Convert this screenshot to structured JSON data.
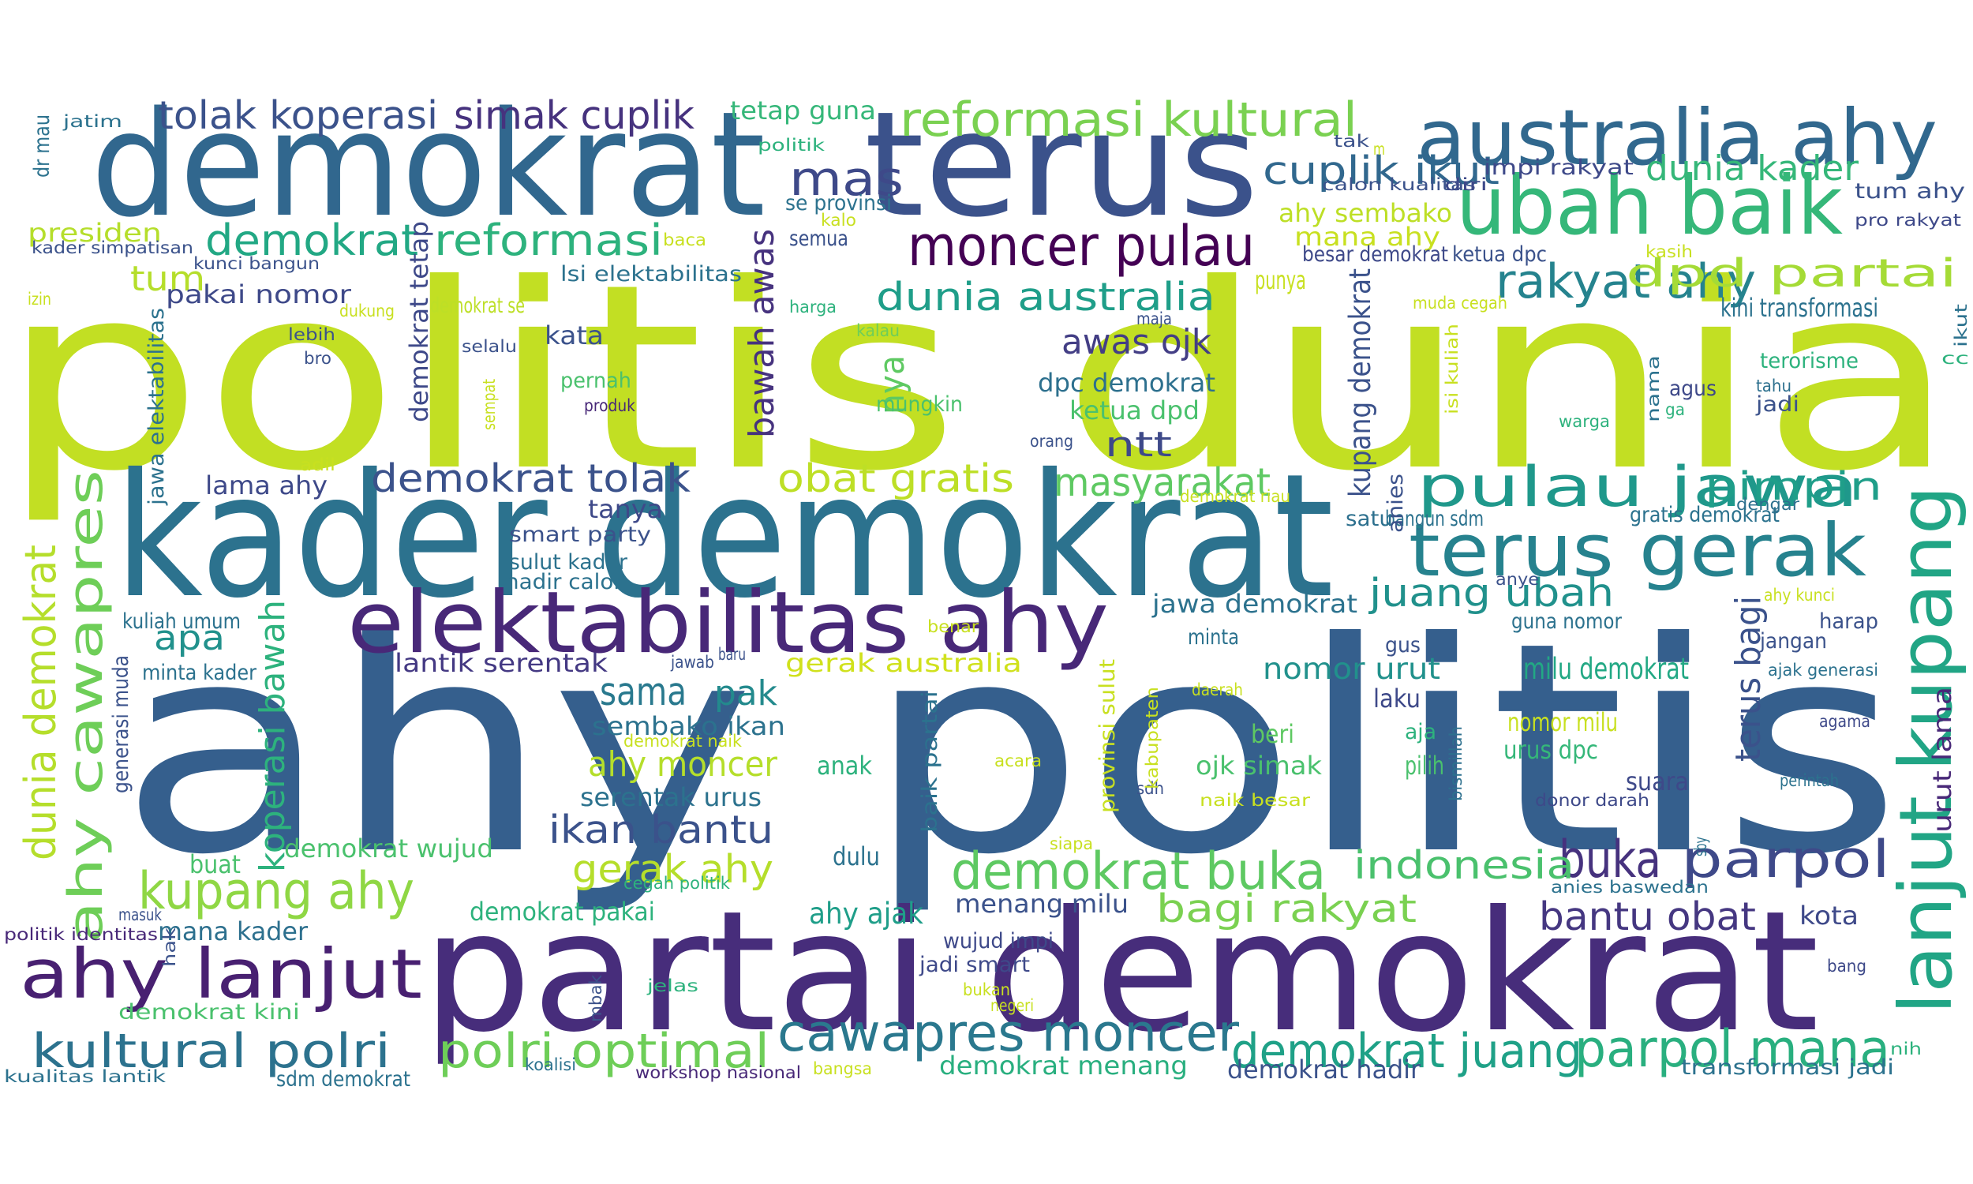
{
  "words": [
    {
      "text": "politis dunia",
      "color": "#c2df23"
    },
    {
      "text": "ahy politis",
      "color": "#355f8d"
    },
    {
      "text": "partai demokrat",
      "color": "#472d7b"
    },
    {
      "text": "kader demokrat",
      "color": "#2c728e"
    },
    {
      "text": "demokrat",
      "color": "#31678e"
    },
    {
      "text": "terus",
      "color": "#3b528b"
    },
    {
      "text": "australia ahy",
      "color": "#31688e"
    },
    {
      "text": "ubah baik",
      "color": "#35b779"
    },
    {
      "text": "elektabilitas ahy",
      "color": "#482878"
    },
    {
      "text": "terus gerak",
      "color": "#26828e"
    },
    {
      "text": "lanjut kupang",
      "color": "#21a585"
    },
    {
      "text": "ahy cawapres",
      "color": "#6ece58"
    },
    {
      "text": "ahy lanjut",
      "color": "#482071"
    },
    {
      "text": "reformasi kultural",
      "color": "#7ad151"
    },
    {
      "text": "moncer pulau",
      "color": "#440154"
    },
    {
      "text": "pulau jawa",
      "color": "#1f988b"
    },
    {
      "text": "demokrat buka",
      "color": "#5ec962"
    },
    {
      "text": "cawapres moncer",
      "color": "#2a788e"
    },
    {
      "text": "kultural polri",
      "color": "#2c728e"
    },
    {
      "text": "polri optimal",
      "color": "#6ece58"
    },
    {
      "text": "mas",
      "color": "#3e4989"
    },
    {
      "text": "demokrat",
      "color": "#22a884"
    },
    {
      "text": "reformasi",
      "color": "#2db27d"
    },
    {
      "text": "tolak koperasi",
      "color": "#3b528b"
    },
    {
      "text": "simak cuplik",
      "color": "#46327e"
    },
    {
      "text": "rakyat ahy",
      "color": "#25838e"
    },
    {
      "text": "dpd partai",
      "color": "#a5db36"
    },
    {
      "text": "dunia australia",
      "color": "#1f9e89"
    },
    {
      "text": "parpol mana",
      "color": "#29af7f"
    },
    {
      "text": "buka",
      "color": "#46327e"
    },
    {
      "text": "parpol",
      "color": "#3e4989"
    },
    {
      "text": "demokrat juang",
      "color": "#1fa187"
    },
    {
      "text": "dunia demokrat",
      "color": "#b5de2b"
    },
    {
      "text": "kupang ahy",
      "color": "#8fd744"
    },
    {
      "text": "demokrat tolak",
      "color": "#3b528b"
    },
    {
      "text": "indonesia",
      "color": "#4ac16d"
    },
    {
      "text": "juang ubah",
      "color": "#21918c"
    },
    {
      "text": "bagi rakyat",
      "color": "#7ad151"
    },
    {
      "text": "obat gratis",
      "color": "#bddf26"
    },
    {
      "text": "masyarakat",
      "color": "#5ec962"
    },
    {
      "text": "pimpin",
      "color": "#1f9e89"
    },
    {
      "text": "cuplik ikut",
      "color": "#31688e"
    },
    {
      "text": "dunia kader",
      "color": "#35b779"
    },
    {
      "text": "bantu obat",
      "color": "#453781"
    },
    {
      "text": "ikan bantu",
      "color": "#3b528b"
    },
    {
      "text": "gerak ahy",
      "color": "#b5de2b"
    },
    {
      "text": "ahy moncer",
      "color": "#b5de2b"
    },
    {
      "text": "ntt",
      "color": "#3e4989"
    },
    {
      "text": "awas ojk",
      "color": "#433e85"
    },
    {
      "text": "koperasi bawah",
      "color": "#2db27d"
    },
    {
      "text": "bawah awas",
      "color": "#46327e"
    },
    {
      "text": "sama",
      "color": "#29798e"
    },
    {
      "text": "pak",
      "color": "#238a8d"
    },
    {
      "text": "apa",
      "color": "#21918c"
    },
    {
      "text": "tum",
      "color": "#b5de2b"
    },
    {
      "text": "terus bagi",
      "color": "#3b528b"
    },
    {
      "text": "urut lama",
      "color": "#482878"
    },
    {
      "text": "nomor urut",
      "color": "#21918c"
    },
    {
      "text": "milu demokrat",
      "color": "#22a884"
    },
    {
      "text": "pakai nomor",
      "color": "#3e4989"
    },
    {
      "text": "dpc demokrat",
      "color": "#2d708e"
    },
    {
      "text": "ketua dpd",
      "color": "#4ac16d"
    },
    {
      "text": "lama ahy",
      "color": "#3e4989"
    },
    {
      "text": "demokrat pakai",
      "color": "#2db27d"
    },
    {
      "text": "demokrat menang",
      "color": "#29af7f"
    },
    {
      "text": "demokrat hadir",
      "color": "#3b528b"
    },
    {
      "text": "demokrat wujud",
      "color": "#4ac16d"
    },
    {
      "text": "ahy ajak",
      "color": "#1f9e89"
    },
    {
      "text": "menang milu",
      "color": "#3b528b"
    },
    {
      "text": "sembako ikan",
      "color": "#2c728e"
    },
    {
      "text": "serentak urus",
      "color": "#2c728e"
    },
    {
      "text": "lantik serentak",
      "color": "#443983"
    },
    {
      "text": "gerak australia",
      "color": "#d0e11c"
    },
    {
      "text": "jawa demokrat",
      "color": "#2c728e"
    },
    {
      "text": "mana kader",
      "color": "#2d708e"
    },
    {
      "text": "tetap guna",
      "color": "#35b779"
    },
    {
      "text": "presiden",
      "color": "#b5de2b"
    },
    {
      "text": "ahy sembako",
      "color": "#bddf26"
    },
    {
      "text": "mana ahy",
      "color": "#c8e020"
    },
    {
      "text": "kini transformasi",
      "color": "#2c728e"
    },
    {
      "text": "tum ahy",
      "color": "#3b528b"
    },
    {
      "text": "impi rakyat",
      "color": "#3e4989"
    },
    {
      "text": "gratis demokrat",
      "color": "#2c728e"
    },
    {
      "text": "guna nomor",
      "color": "#2c728e"
    },
    {
      "text": "nomor milu",
      "color": "#c8e020"
    },
    {
      "text": "urus dpc",
      "color": "#35b779"
    },
    {
      "text": "suara",
      "color": "#3e4989"
    },
    {
      "text": "kota",
      "color": "#3e4989"
    },
    {
      "text": "jangan",
      "color": "#3b528b"
    },
    {
      "text": "tanya",
      "color": "#3e4989"
    },
    {
      "text": "satu",
      "color": "#2d708e"
    },
    {
      "text": "bangun sdm",
      "color": "#2c728e"
    },
    {
      "text": "wujud impi",
      "color": "#3e4989"
    },
    {
      "text": "jadi smart",
      "color": "#3e4989"
    },
    {
      "text": "smart party",
      "color": "#3b528b"
    },
    {
      "text": "sulut kader",
      "color": "#2c728e"
    },
    {
      "text": "hadir calon",
      "color": "#2c728e"
    },
    {
      "text": "kata",
      "color": "#3b528b"
    },
    {
      "text": "pernah",
      "color": "#4ac16d"
    },
    {
      "text": "produk",
      "color": "#482878"
    },
    {
      "text": "selalu",
      "color": "#3b528b"
    },
    {
      "text": "lebih",
      "color": "#3b528b"
    },
    {
      "text": "bro",
      "color": "#3b528b"
    },
    {
      "text": "harga",
      "color": "#2db27d"
    },
    {
      "text": "kalau",
      "color": "#6ece58"
    },
    {
      "text": "maja",
      "color": "#3b528b"
    },
    {
      "text": "nya",
      "color": "#5ec962"
    },
    {
      "text": "mungkin",
      "color": "#4ac16d"
    },
    {
      "text": "orang",
      "color": "#3b528b"
    },
    {
      "text": "punya",
      "color": "#c8e020"
    },
    {
      "text": "demokrat se",
      "color": "#bddf26"
    },
    {
      "text": "dukung",
      "color": "#c8e020"
    },
    {
      "text": "lsi elektabilitas",
      "color": "#2c728e"
    },
    {
      "text": "baca",
      "color": "#c8e020"
    },
    {
      "text": "semua",
      "color": "#3b528b"
    },
    {
      "text": "kalo",
      "color": "#c8e020"
    },
    {
      "text": "se provinsi",
      "color": "#2c728e"
    },
    {
      "text": "politik",
      "color": "#2db27d"
    },
    {
      "text": "calon kualitas",
      "color": "#3b528b"
    },
    {
      "text": "diri",
      "color": "#3e4989"
    },
    {
      "text": "besar demokrat",
      "color": "#3e4989"
    },
    {
      "text": "ketua dpc",
      "color": "#3b528b"
    },
    {
      "text": "kasih",
      "color": "#c8e020"
    },
    {
      "text": "muda cegah",
      "color": "#c8e020"
    },
    {
      "text": "tak",
      "color": "#3b528b"
    },
    {
      "text": "m",
      "color": "#c8e020"
    },
    {
      "text": "pro rakyat",
      "color": "#3e4989"
    },
    {
      "text": "terorisme",
      "color": "#2db27d"
    },
    {
      "text": "cc",
      "color": "#2db27d"
    },
    {
      "text": "tahu",
      "color": "#2d708e"
    },
    {
      "text": "jadi",
      "color": "#3b528b"
    },
    {
      "text": "agus",
      "color": "#3e4989"
    },
    {
      "text": "ga",
      "color": "#2db27d"
    },
    {
      "text": "warga",
      "color": "#2db27d"
    },
    {
      "text": "dengar",
      "color": "#2d708e"
    },
    {
      "text": "anye",
      "color": "#3b528b"
    },
    {
      "text": "ahy kunci",
      "color": "#c8e020"
    },
    {
      "text": "harap",
      "color": "#3b528b"
    },
    {
      "text": "ajak generasi",
      "color": "#2c728e"
    },
    {
      "text": "agama",
      "color": "#3e4989"
    },
    {
      "text": "perintah",
      "color": "#2c728e"
    },
    {
      "text": "bang",
      "color": "#3e4989"
    },
    {
      "text": "nih",
      "color": "#2db27d"
    },
    {
      "text": "transformasi jadi",
      "color": "#2c728e"
    },
    {
      "text": "anies baswedan",
      "color": "#2c728e"
    },
    {
      "text": "donor darah",
      "color": "#3e4989"
    },
    {
      "text": "naik besar",
      "color": "#c8e020"
    },
    {
      "text": "ojk simak",
      "color": "#4ac16d"
    },
    {
      "text": "sdh",
      "color": "#3b528b"
    },
    {
      "text": "pilih",
      "color": "#4ac16d"
    },
    {
      "text": "aja",
      "color": "#2db27d"
    },
    {
      "text": "beri",
      "color": "#5ec962"
    },
    {
      "text": "laku",
      "color": "#3e4989"
    },
    {
      "text": "gus",
      "color": "#3b528b"
    },
    {
      "text": "minta",
      "color": "#2c728e"
    },
    {
      "text": "daerah",
      "color": "#c8e020"
    },
    {
      "text": "acara",
      "color": "#c8e020"
    },
    {
      "text": "siapa",
      "color": "#c8e020"
    },
    {
      "text": "bukan",
      "color": "#c8e020"
    },
    {
      "text": "negeri",
      "color": "#c8e020"
    },
    {
      "text": "benar",
      "color": "#c8e020"
    },
    {
      "text": "dulu",
      "color": "#2c728e"
    },
    {
      "text": "anak",
      "color": "#2db27d"
    },
    {
      "text": "buat",
      "color": "#4ac16d"
    },
    {
      "text": "demokrat naik",
      "color": "#c8e020"
    },
    {
      "text": "jawab",
      "color": "#3b528b"
    },
    {
      "text": "baru",
      "color": "#3b528b"
    },
    {
      "text": "cegah politik",
      "color": "#2db27d"
    },
    {
      "text": "jelas",
      "color": "#2db27d"
    },
    {
      "text": "koalisi",
      "color": "#2c728e"
    },
    {
      "text": "workshop nasional",
      "color": "#482878"
    },
    {
      "text": "bangsa",
      "color": "#c8e020"
    },
    {
      "text": "kualitas lantik",
      "color": "#2c728e"
    },
    {
      "text": "sdm demokrat",
      "color": "#2c728e"
    },
    {
      "text": "demokrat kini",
      "color": "#4ac16d"
    },
    {
      "text": "politik identitas",
      "color": "#482878"
    },
    {
      "text": "masuk",
      "color": "#3b528b"
    },
    {
      "text": "kuliah umum",
      "color": "#2c728e"
    },
    {
      "text": "minta kader",
      "color": "#2c728e"
    },
    {
      "text": "kader simpatisan",
      "color": "#3b528b"
    },
    {
      "text": "kunci bangun",
      "color": "#3b528b"
    },
    {
      "text": "jatim",
      "color": "#2c728e"
    },
    {
      "text": "izin",
      "color": "#c8e020"
    },
    {
      "text": "adil",
      "color": "#c8e020"
    },
    {
      "text": "demokrat riau",
      "color": "#c8e020"
    },
    {
      "text": "dr mau",
      "color": "#2c728e"
    },
    {
      "text": "demokrat tetap",
      "color": "#3e4989"
    },
    {
      "text": "kupang demokrat",
      "color": "#3b528b"
    },
    {
      "text": "anies",
      "color": "#3b528b"
    },
    {
      "text": "isi kuliah",
      "color": "#c8e020"
    },
    {
      "text": "nama",
      "color": "#2c728e"
    },
    {
      "text": "sempat",
      "color": "#c8e020"
    },
    {
      "text": "jawa elektabilitas",
      "color": "#2c728e"
    },
    {
      "text": "generasi muda",
      "color": "#3b528b"
    },
    {
      "text": "hak",
      "color": "#3b528b"
    },
    {
      "text": "mbak",
      "color": "#3b528b"
    },
    {
      "text": "provinsi sulut",
      "color": "#c8e020"
    },
    {
      "text": "kabupaten",
      "color": "#c8e020"
    },
    {
      "text": "baik partai",
      "color": "#2c728e"
    },
    {
      "text": "bismillah",
      "color": "#2d708e"
    },
    {
      "text": "sby",
      "color": "#2c728e"
    },
    {
      "text": "ikut",
      "color": "#2c728e"
    }
  ]
}
